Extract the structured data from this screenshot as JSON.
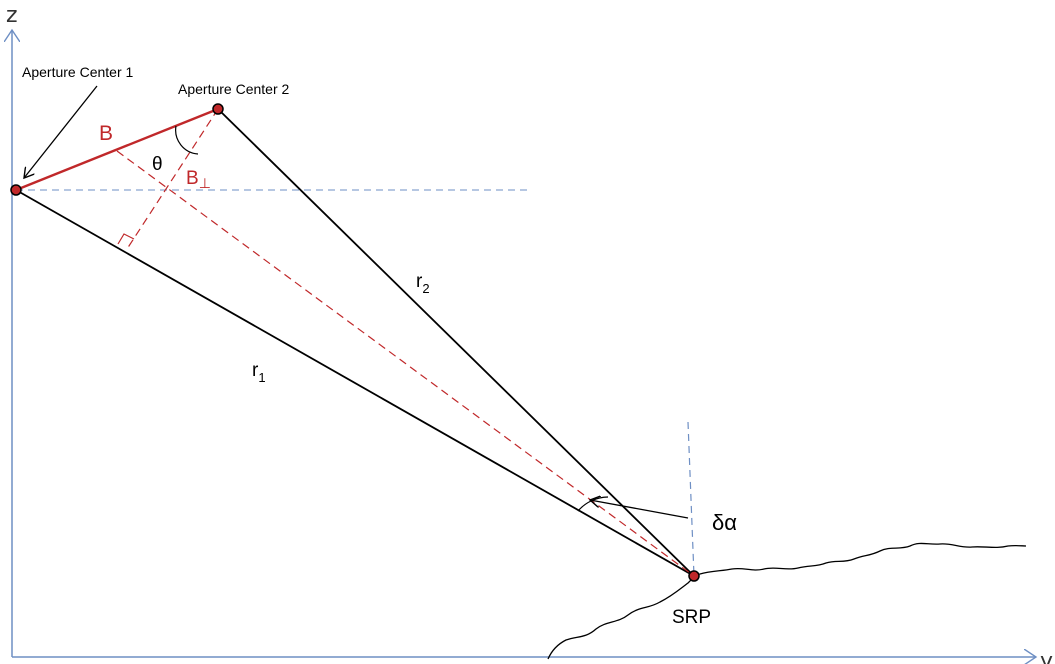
{
  "axes": {
    "z_label": "z",
    "y_label": "y"
  },
  "points": {
    "aperture1_label": "Aperture Center 1",
    "aperture2_label": "Aperture Center 2",
    "srp_label": "SRP"
  },
  "segments": {
    "baseline_label": "B",
    "perp_baseline_label": "B",
    "perp_symbol": "⊥",
    "theta_label": "θ",
    "r1_label": "r",
    "r1_sub": "1",
    "r2_label": "r",
    "r2_sub": "2",
    "delta_alpha_label": "δα"
  },
  "colors": {
    "axis": "#6e8fc4",
    "baseline_red": "#c0282a",
    "dashed_blue": "#6e8fc4",
    "point_fill": "#c0282a",
    "terrain": "#000000"
  }
}
